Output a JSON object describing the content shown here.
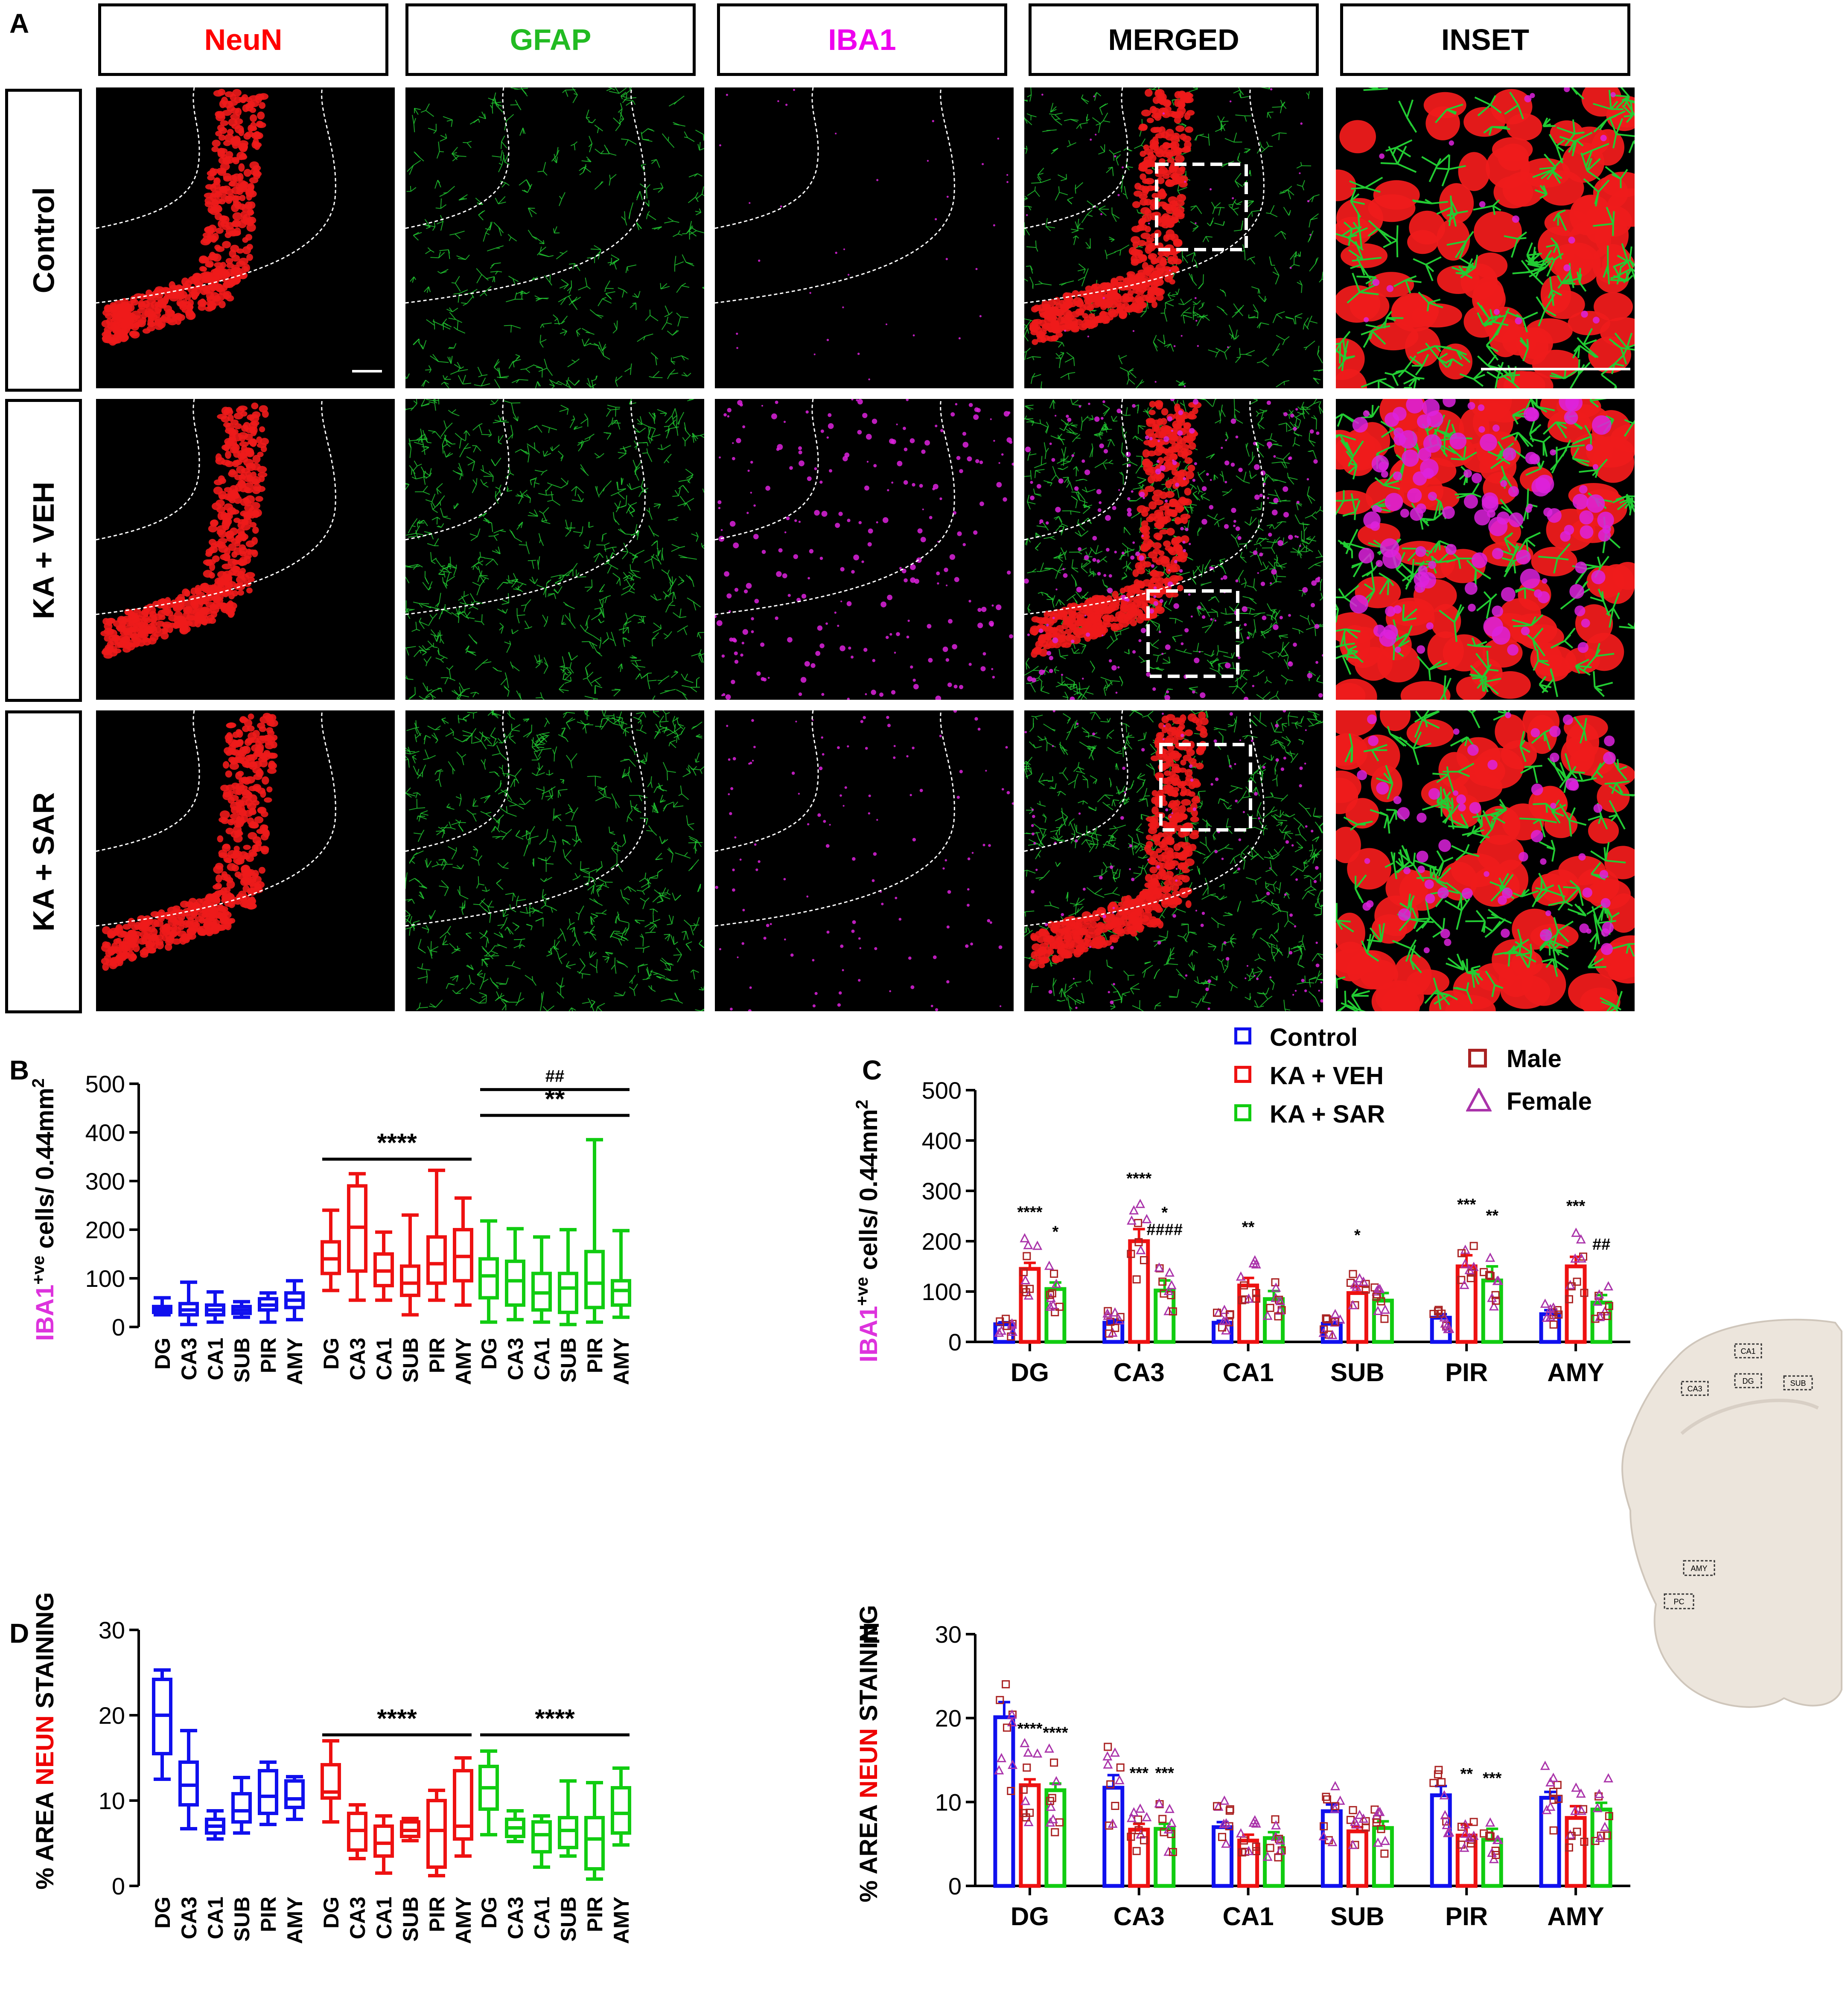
{
  "figure": {
    "panel_labels": [
      "A",
      "B",
      "C",
      "D",
      "E"
    ],
    "column_headers": [
      {
        "text": "NeuN",
        "color": "#ff0000"
      },
      {
        "text": "GFAP",
        "color": "#22bb22"
      },
      {
        "text": "IBA1",
        "color": "#ee00ee"
      },
      {
        "text": "MERGED",
        "color": "#000000"
      },
      {
        "text": "INSET",
        "color": "#000000"
      }
    ],
    "row_headers": [
      "Control",
      "KA + VEH",
      "KA + SAR"
    ],
    "colors": {
      "control": "#1010ee",
      "ka_veh": "#ee1111",
      "ka_sar": "#11cc11",
      "male": "#aa2222",
      "female": "#aa33aa",
      "iba1": "#dd33dd",
      "neun_word": "#ee0000"
    }
  },
  "legend": {
    "groups": [
      "Control",
      "KA + VEH",
      "KA + SAR"
    ],
    "sexes": [
      "Male",
      "Female"
    ]
  },
  "axis_text": {
    "iba1_prefix": "IBA1",
    "iba1_sup": "+ve",
    "iba1_suffix": " cells/ 0.44mm",
    "iba1_sq": "2",
    "neun_prefix": "% AREA ",
    "neun_word": "NEUN",
    "neun_suffix": " STAINING"
  },
  "brain_regions": [
    "CA1",
    "DG",
    "CA3",
    "SUB",
    "AMY",
    "PC"
  ],
  "chart_data": [
    {
      "panel": "B",
      "type": "box",
      "categories": [
        "DG",
        "CA3",
        "CA1",
        "SUB",
        "PIR",
        "AMY"
      ],
      "ylim": [
        0,
        500
      ],
      "yticks": [
        0,
        100,
        200,
        300,
        400,
        500
      ],
      "groups": [
        {
          "name": "Control",
          "boxes": [
            {
              "min": 25,
              "q1": 30,
              "median": 36,
              "q3": 42,
              "max": 60
            },
            {
              "min": 5,
              "q1": 25,
              "median": 35,
              "q3": 48,
              "max": 92
            },
            {
              "min": 10,
              "q1": 25,
              "median": 35,
              "q3": 45,
              "max": 72
            },
            {
              "min": 20,
              "q1": 28,
              "median": 35,
              "q3": 42,
              "max": 52
            },
            {
              "min": 10,
              "q1": 35,
              "median": 45,
              "q3": 58,
              "max": 70
            },
            {
              "min": 15,
              "q1": 40,
              "median": 55,
              "q3": 70,
              "max": 95
            }
          ]
        },
        {
          "name": "KA + VEH",
          "boxes": [
            {
              "min": 75,
              "q1": 110,
              "median": 140,
              "q3": 175,
              "max": 240
            },
            {
              "min": 55,
              "q1": 115,
              "median": 205,
              "q3": 290,
              "max": 315
            },
            {
              "min": 55,
              "q1": 85,
              "median": 115,
              "q3": 150,
              "max": 195
            },
            {
              "min": 25,
              "q1": 65,
              "median": 90,
              "q3": 125,
              "max": 230
            },
            {
              "min": 55,
              "q1": 90,
              "median": 130,
              "q3": 185,
              "max": 322
            },
            {
              "min": 45,
              "q1": 95,
              "median": 145,
              "q3": 200,
              "max": 265
            }
          ]
        },
        {
          "name": "KA + SAR",
          "boxes": [
            {
              "min": 10,
              "q1": 60,
              "median": 105,
              "q3": 140,
              "max": 218
            },
            {
              "min": 15,
              "q1": 45,
              "median": 95,
              "q3": 135,
              "max": 202
            },
            {
              "min": 10,
              "q1": 35,
              "median": 70,
              "q3": 110,
              "max": 185
            },
            {
              "min": 5,
              "q1": 30,
              "median": 80,
              "q3": 110,
              "max": 200
            },
            {
              "min": 10,
              "q1": 40,
              "median": 90,
              "q3": 155,
              "max": 385
            },
            {
              "min": 20,
              "q1": 45,
              "median": 75,
              "q3": 95,
              "max": 198
            }
          ]
        }
      ],
      "annotations": [
        {
          "text": "****",
          "group": 1,
          "y": 345
        },
        {
          "text": "**",
          "group": 2,
          "y": 435
        },
        {
          "text": "##",
          "group": 2,
          "y": 488
        }
      ]
    },
    {
      "panel": "C",
      "type": "bar",
      "categories": [
        "DG",
        "CA3",
        "CA1",
        "SUB",
        "PIR",
        "AMY"
      ],
      "ylim": [
        0,
        500
      ],
      "yticks": [
        0,
        100,
        200,
        300,
        400,
        500
      ],
      "series": [
        {
          "name": "Control",
          "values": [
            35,
            38,
            38,
            36,
            48,
            55
          ],
          "sem": [
            4,
            6,
            4,
            3,
            7,
            8
          ]
        },
        {
          "name": "KA + VEH",
          "values": [
            145,
            200,
            112,
            97,
            150,
            150
          ],
          "sem": [
            12,
            24,
            15,
            14,
            22,
            19
          ]
        },
        {
          "name": "KA + SAR",
          "values": [
            105,
            102,
            85,
            82,
            122,
            78
          ],
          "sem": [
            13,
            20,
            16,
            15,
            28,
            15
          ]
        }
      ],
      "annotations": [
        {
          "text": "****",
          "category": 0,
          "series": 1
        },
        {
          "text": "*",
          "category": 0,
          "series": 2
        },
        {
          "text": "****",
          "category": 1,
          "series": 1
        },
        {
          "text": "####",
          "category": 1,
          "series": 2
        },
        {
          "text": "*",
          "category": 1,
          "series": 2
        },
        {
          "text": "**",
          "category": 2,
          "series": 1
        },
        {
          "text": "*",
          "category": 3,
          "series": 1
        },
        {
          "text": "***",
          "category": 4,
          "series": 1
        },
        {
          "text": "**",
          "category": 4,
          "series": 2
        },
        {
          "text": "***",
          "category": 5,
          "series": 1
        },
        {
          "text": "##",
          "category": 5,
          "series": 2
        }
      ]
    },
    {
      "panel": "D",
      "type": "box",
      "categories": [
        "DG",
        "CA3",
        "CA1",
        "SUB",
        "PIR",
        "AMY"
      ],
      "ylim": [
        0,
        30
      ],
      "yticks": [
        0,
        10,
        20,
        30
      ],
      "groups": [
        {
          "name": "Control",
          "boxes": [
            {
              "min": 12.5,
              "q1": 15.5,
              "median": 20,
              "q3": 24.2,
              "max": 25.3
            },
            {
              "min": 6.7,
              "q1": 9.5,
              "median": 11.8,
              "q3": 14.5,
              "max": 18.2
            },
            {
              "min": 5.5,
              "q1": 6.2,
              "median": 7,
              "q3": 7.8,
              "max": 8.8
            },
            {
              "min": 6.2,
              "q1": 7.5,
              "median": 8.8,
              "q3": 10.8,
              "max": 12.7
            },
            {
              "min": 7.2,
              "q1": 8.5,
              "median": 10.5,
              "q3": 13.5,
              "max": 14.5
            },
            {
              "min": 7.8,
              "q1": 9.2,
              "median": 10.2,
              "q3": 12.3,
              "max": 12.8
            }
          ]
        },
        {
          "name": "KA + VEH",
          "boxes": [
            {
              "min": 7.5,
              "q1": 10.3,
              "median": 11,
              "q3": 14.2,
              "max": 17
            },
            {
              "min": 3.2,
              "q1": 4.2,
              "median": 6.5,
              "q3": 8.5,
              "max": 9.5
            },
            {
              "min": 1.5,
              "q1": 3.5,
              "median": 5,
              "q3": 7,
              "max": 8.2
            },
            {
              "min": 5.3,
              "q1": 5.8,
              "median": 6.5,
              "q3": 7.5,
              "max": 7.9
            },
            {
              "min": 1.2,
              "q1": 2.2,
              "median": 6.5,
              "q3": 10,
              "max": 11.2
            },
            {
              "min": 3.5,
              "q1": 5.5,
              "median": 7,
              "q3": 13.5,
              "max": 15
            }
          ]
        },
        {
          "name": "KA + SAR",
          "boxes": [
            {
              "min": 6,
              "q1": 9,
              "median": 11.5,
              "q3": 14,
              "max": 15.8
            },
            {
              "min": 5.2,
              "q1": 5.8,
              "median": 6.8,
              "q3": 7.8,
              "max": 8.8
            },
            {
              "min": 2.2,
              "q1": 4,
              "median": 6,
              "q3": 7.5,
              "max": 8.2
            },
            {
              "min": 3.5,
              "q1": 4.5,
              "median": 6.5,
              "q3": 8,
              "max": 12.3
            },
            {
              "min": 0.8,
              "q1": 2,
              "median": 5.5,
              "q3": 8,
              "max": 12.1
            },
            {
              "min": 4.8,
              "q1": 6.2,
              "median": 8.5,
              "q3": 11.5,
              "max": 13.8
            }
          ]
        }
      ],
      "annotations": [
        {
          "text": "****",
          "group": 1,
          "y": 17.7
        },
        {
          "text": "****",
          "group": 2,
          "y": 17.7
        }
      ]
    },
    {
      "panel": "E",
      "type": "bar",
      "categories": [
        "DG",
        "CA3",
        "CA1",
        "SUB",
        "PIR",
        "AMY"
      ],
      "ylim": [
        0,
        30
      ],
      "yticks": [
        0,
        10,
        20,
        30
      ],
      "series": [
        {
          "name": "Control",
          "values": [
            20.1,
            11.7,
            7,
            8.9,
            10.8,
            10.5
          ],
          "sem": [
            1.8,
            1.5,
            0.6,
            0.8,
            1.1,
            0.7
          ]
        },
        {
          "name": "KA + VEH",
          "values": [
            12,
            6.7,
            5.4,
            6.5,
            6,
            8.1
          ],
          "sem": [
            0.7,
            0.7,
            0.7,
            0.5,
            1.3,
            1.4
          ]
        },
        {
          "name": "KA + SAR",
          "values": [
            11.4,
            6.8,
            5.7,
            6.9,
            5.5,
            9.1
          ],
          "sem": [
            0.8,
            0.6,
            0.7,
            0.8,
            1.3,
            0.8
          ]
        }
      ],
      "annotations": [
        {
          "text": "****",
          "category": 0,
          "series": 1
        },
        {
          "text": "****",
          "category": 0,
          "series": 2
        },
        {
          "text": "***",
          "category": 1,
          "series": 1
        },
        {
          "text": "***",
          "category": 1,
          "series": 2
        },
        {
          "text": "**",
          "category": 4,
          "series": 1
        },
        {
          "text": "***",
          "category": 4,
          "series": 2
        }
      ]
    }
  ]
}
